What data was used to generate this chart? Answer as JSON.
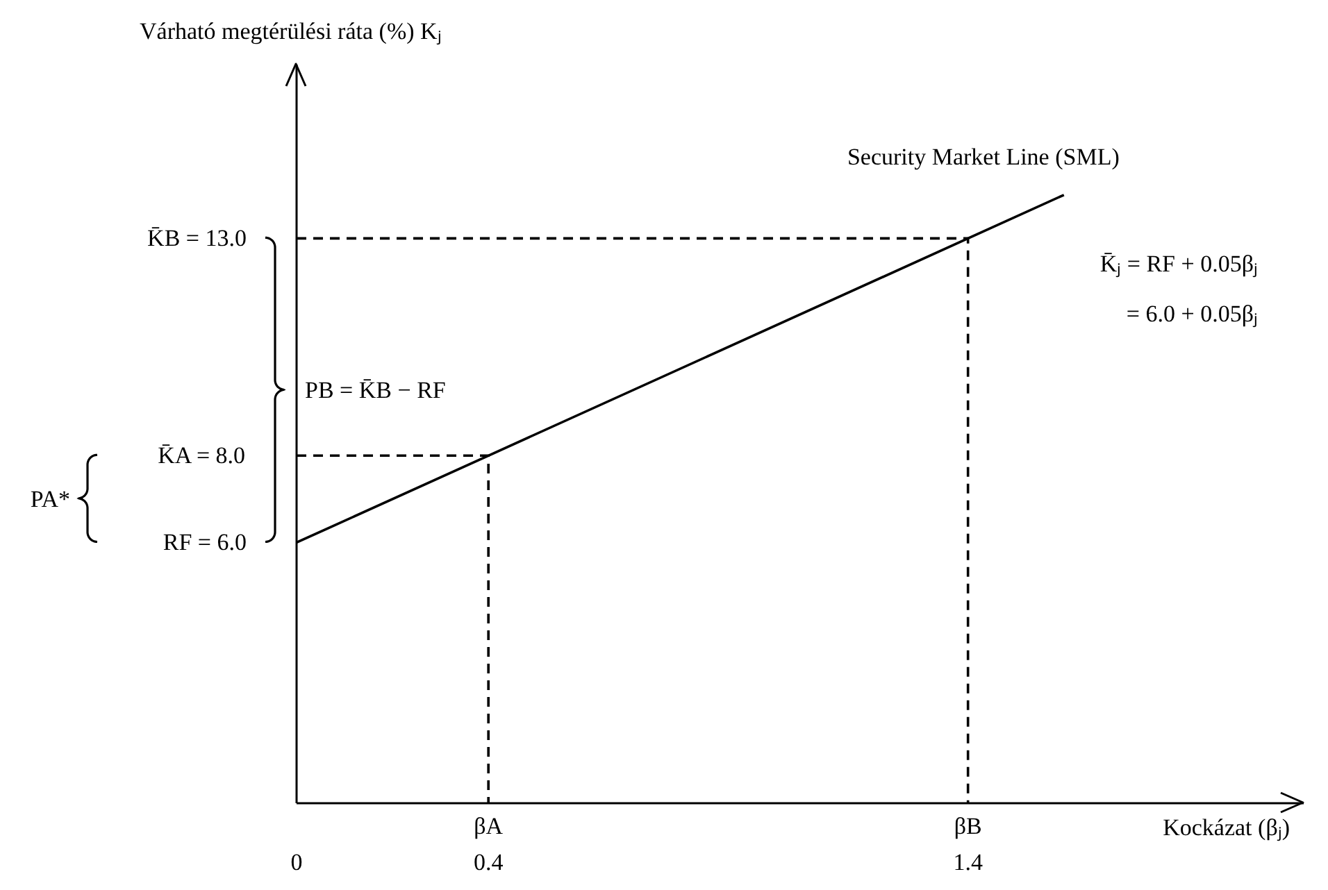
{
  "chart_data": {
    "type": "line",
    "ylabel": "Várható megtérülési ráta (%) Kⱼ",
    "xlabel": "Kockázat (βⱼ)",
    "xlim": [
      0,
      2.1
    ],
    "ylim": [
      0,
      17
    ],
    "xticks": [
      0,
      0.4,
      1.4
    ],
    "yticks": [
      {
        "value": 6,
        "label": "RF = 6.0"
      },
      {
        "value": 8,
        "label": "K̄A = 8.0"
      },
      {
        "value": 13,
        "label": "K̄B = 13.0"
      }
    ],
    "series": [
      {
        "color": "#000000",
        "x": [
          0,
          0.4,
          1.4,
          1.6
        ],
        "values": [
          6,
          8,
          13,
          14
        ],
        "line_style": "solid"
      },
      {
        "color": "#000000",
        "x": [
          0,
          0.4,
          0.4
        ],
        "values": [
          8,
          8,
          0
        ],
        "line_style": "dashed"
      },
      {
        "color": "#000000",
        "x": [
          0,
          1.4,
          1.4
        ],
        "values": [
          13,
          13,
          0
        ],
        "line_style": "dashed"
      }
    ],
    "annotations": [
      {
        "text": "Security Market Line (SML)",
        "x": 1.6,
        "y": 14
      },
      {
        "text": "βA",
        "x": 0.4,
        "y": 0
      },
      {
        "text": "βB",
        "x": 1.4,
        "y": 0
      },
      "PB = K̄B − RF",
      "PA*",
      "K̄ⱼ = RF + 0.05βⱼ",
      "= 6.0 + 0.05βⱼ"
    ],
    "marker": "none",
    "grid": false
  }
}
